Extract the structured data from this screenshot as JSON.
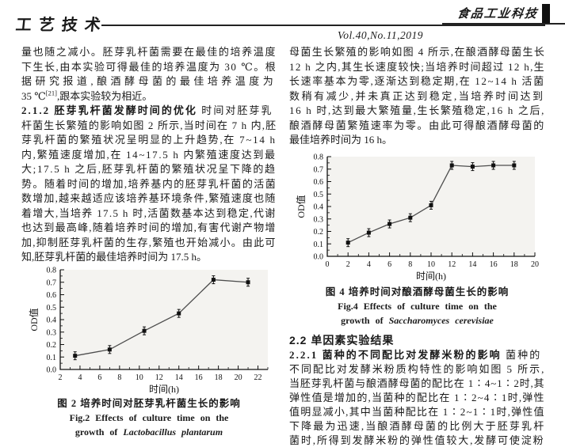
{
  "header": {
    "section_label": "工艺技术",
    "journal_logo": "食品工业科技",
    "issue_info": "Vol.40,No.11,2019"
  },
  "left_column": {
    "lines": [
      {
        "text": "量也随之减小。胚芽乳杆菌需要在最佳的培养温度",
        "justify": true
      },
      {
        "text": "下生长,由本实验可得最佳的培养温度为 30 ℃。根",
        "justify": true
      },
      {
        "text": "据研究报道,酿酒酵母菌的最佳培养温度为",
        "justify": true
      },
      {
        "segments": [
          {
            "text": "35 ℃"
          },
          {
            "text": "[21]",
            "sup": true
          },
          {
            "text": ",跟本实验较为相近。"
          }
        ],
        "justify": false
      },
      {
        "segments": [
          {
            "text": "2.1.2  胚芽乳杆菌发酵时间的优化",
            "bold": true
          },
          {
            "text": "  时间对胚芽乳"
          }
        ],
        "justify": true
      },
      {
        "text": "杆菌生长繁殖的影响如图 2 所示,当时间在 7 h 内,胚",
        "justify": true
      },
      {
        "text": "芽乳杆菌的繁殖状况呈明显的上升趋势,在 7~14 h",
        "justify": true
      },
      {
        "text": "内,繁殖速度增加,在 14~17.5 h 内繁殖速度达到最",
        "justify": true
      },
      {
        "text": "大;17.5 h 之后,胚芽乳杆菌的繁殖状况呈下降的趋",
        "justify": true
      },
      {
        "text": "势。随着时间的增加,培养基内的胚芽乳杆菌的活菌",
        "justify": true
      },
      {
        "text": "数增加,越来越适应该培养基环境条件,繁殖速度也随",
        "justify": true
      },
      {
        "text": "着增大,当培养 17.5 h 时,活菌数基本达到稳定,代谢",
        "justify": true
      },
      {
        "text": "也达到最高峰,随着培养时间的增加,有害代谢产物增",
        "justify": true
      },
      {
        "text": "加,抑制胚芽乳杆菌的生存,繁殖也开始减小。由此可",
        "justify": true
      },
      {
        "text": "知,胚芽乳杆菌的最佳培养时间为 17.5 h。",
        "justify": false
      }
    ]
  },
  "right_column": {
    "lines_top": [
      {
        "text": "母菌生长繁殖的影响如图 4 所示,在酿酒酵母菌生长",
        "justify": true
      },
      {
        "text": "12 h 之内,其生长速度较快;当培养时间超过 12 h,生",
        "justify": true
      },
      {
        "text": "长速率基本为零,逐渐达到稳定期,在 12~14 h 活菌",
        "justify": true
      },
      {
        "text": "数稍有减少,并未真正达到稳定,当培养时间达到",
        "justify": true
      },
      {
        "text": "16 h 时,达到最大繁殖量,生长繁殖稳定,16 h 之后,",
        "justify": true
      },
      {
        "text": "酿酒酵母菌繁殖速率为零。由此可得酿酒酵母菌的",
        "justify": true
      },
      {
        "text": "最佳培养时间为 16 h。",
        "justify": false
      }
    ],
    "section_heading": "2.2  单因素实验结果",
    "lines_bottom": [
      {
        "segments": [
          {
            "text": "2.2.1  菌种的不同配比对发酵米粉的影响",
            "bold": true
          },
          {
            "text": "  菌种的"
          }
        ],
        "justify": true
      },
      {
        "text": "不同配比对发酵米粉质构特性的影响如图 5 所示,",
        "justify": true
      },
      {
        "text": "当胚芽乳杆菌与酿酒酵母菌的配比在 1∶4~1∶2时,其",
        "justify": true
      },
      {
        "text": "弹性值是增加的,当菌种的配比在 1∶2~4∶1时,弹性",
        "justify": true
      },
      {
        "text": "值明显减小,其中当菌种配比在 1∶2~1∶1时,弹性值",
        "justify": true
      },
      {
        "text": "下降最为迅速,当酿酒酵母菌的比例大于胚芽乳杆",
        "justify": true
      },
      {
        "text": "菌时,所得到发酵米粉的弹性值较大,发酵可使淀粉",
        "justify": true
      }
    ]
  },
  "chart_data": [
    {
      "id": "fig2",
      "type": "line",
      "title": "",
      "xlabel": "时间(h)",
      "ylabel": "OD值",
      "x": [
        3.5,
        7,
        10.5,
        14,
        17.5,
        21
      ],
      "y": [
        0.11,
        0.16,
        0.31,
        0.45,
        0.72,
        0.7
      ],
      "xlim": [
        2,
        23
      ],
      "ylim": [
        0,
        0.8
      ],
      "xtick_start": 2,
      "xtick_end": 22,
      "xtick_step": 2,
      "xminor_step": 1,
      "ytick_step": 0.1,
      "yminor_step": 0.05,
      "grid": false,
      "legend": "none",
      "marker": "filled-square-with-errorbar",
      "line_color": "#4d4d4d",
      "plot_bg": "#f4f3f0",
      "caption_cn": "图 2  培养时间对胚芽乳杆菌生长的影响",
      "caption_en_line1": "Fig.2  Effects of culture time on the",
      "caption_en_line2_roman": "growth of ",
      "caption_en_line2_italic": "Lactobacillus plantarum"
    },
    {
      "id": "fig4",
      "type": "line",
      "title": "",
      "xlabel": "时间(h)",
      "ylabel": "OD值",
      "x": [
        2,
        4,
        6,
        8,
        10,
        12,
        14,
        16,
        18
      ],
      "y": [
        0.11,
        0.19,
        0.26,
        0.31,
        0.41,
        0.73,
        0.72,
        0.73,
        0.73
      ],
      "xlim": [
        0,
        20
      ],
      "ylim": [
        0,
        0.8
      ],
      "xtick_start": 0,
      "xtick_end": 20,
      "xtick_step": 2,
      "xminor_step": 1,
      "ytick_step": 0.1,
      "yminor_step": 0.05,
      "grid": false,
      "legend": "none",
      "marker": "filled-square-with-errorbar",
      "line_color": "#4d4d4d",
      "plot_bg": "#f4f3f0",
      "caption_cn": "图 4  培养时间对酿酒酵母菌生长的影响",
      "caption_en_line1": "Fig.4  Effects of culture time on the",
      "caption_en_line2_roman": "growth of ",
      "caption_en_line2_italic": "Saccharomyces cerevisiae"
    }
  ]
}
